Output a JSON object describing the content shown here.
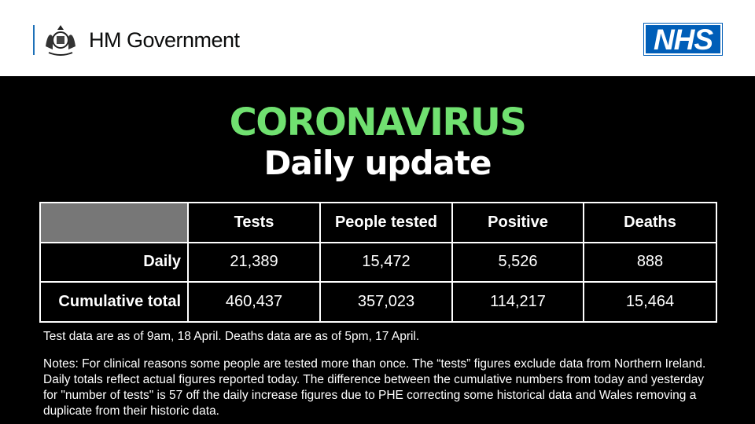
{
  "header": {
    "government_label": "HM Government",
    "nhs_logo": "NHS",
    "crest_icon": "royal-coat-of-arms"
  },
  "title": {
    "line1": "CORONAVIRUS",
    "line2": "Daily update",
    "accent": "#70e070"
  },
  "table": {
    "columns": [
      "Tests",
      "People tested",
      "Positive",
      "Deaths"
    ],
    "rows": [
      {
        "label": "Daily",
        "values": [
          "21,389",
          "15,472",
          "5,526",
          "888"
        ]
      },
      {
        "label": "Cumulative total",
        "values": [
          "460,437",
          "357,023",
          "114,217",
          "15,464"
        ]
      }
    ]
  },
  "as_of": "Test data are as of 9am, 18 April. Deaths data are as of 5pm, 17 April.",
  "notes": "Notes: For clinical reasons some people are tested more than once. The “tests” figures exclude data from Northern Ireland. Daily totals reflect actual figures reported today. The difference between the cumulative numbers from today and yesterday for \"number of tests\" is 57 off the daily increase figures due to PHE correcting some historical data and Wales removing a duplicate from their historic data."
}
